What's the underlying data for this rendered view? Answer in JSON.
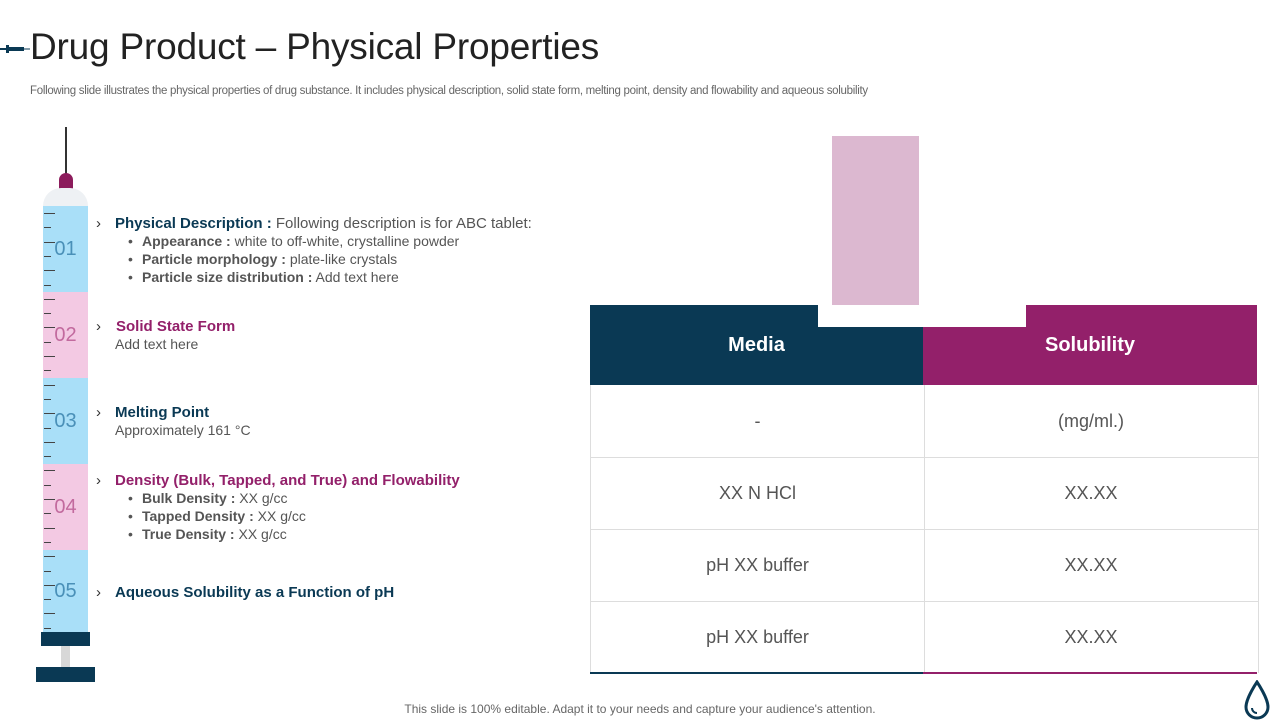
{
  "header": {
    "title": "Drug Product – Physical Properties",
    "subtitle": "Following slide illustrates the physical properties of drug substance. It includes physical description, solid state form, melting point, density and flowability and aqueous solubility"
  },
  "syringe": {
    "segments": [
      "01",
      "02",
      "03",
      "04",
      "05"
    ]
  },
  "items": {
    "i1": {
      "heading": "Physical Description :",
      "desc": "Following description is for ABC tablet:",
      "bullets": [
        {
          "label": "Appearance :",
          "value": "white to off-white, crystalline powder"
        },
        {
          "label": "Particle morphology :",
          "value": "plate-like crystals"
        },
        {
          "label": "Particle size distribution :",
          "value": "Add text here"
        }
      ]
    },
    "i2": {
      "heading": "Solid State Form",
      "desc": "Add text here"
    },
    "i3": {
      "heading": "Melting Point",
      "desc": "Approximately 161 °C"
    },
    "i4": {
      "heading": "Density (Bulk, Tapped, and True) and Flowability",
      "bullets": [
        {
          "label": "Bulk Density :",
          "value": "XX g/cc"
        },
        {
          "label": "Tapped Density :",
          "value": "XX g/cc"
        },
        {
          "label": "True Density :",
          "value": "XX g/cc"
        }
      ]
    },
    "i5": {
      "heading": "Aqueous Solubility as a Function of pH"
    }
  },
  "table": {
    "headers": [
      "Media",
      "Solubility"
    ],
    "rows": [
      [
        "-",
        "(mg/ml.)"
      ],
      [
        "XX N HCl",
        "XX.XX"
      ],
      [
        "pH XX buffer",
        "XX.XX"
      ],
      [
        "pH XX buffer",
        "XX.XX"
      ]
    ]
  },
  "footer": "This slide is 100% editable. Adapt it to your needs and capture your audience's attention.",
  "colors": {
    "navy": "#0a3954",
    "magenta": "#93206a",
    "light_blue": "#a9dff8",
    "light_pink": "#f3c9e3"
  },
  "icons": {
    "title": "syringe-icon",
    "corner": "drop-icon"
  }
}
